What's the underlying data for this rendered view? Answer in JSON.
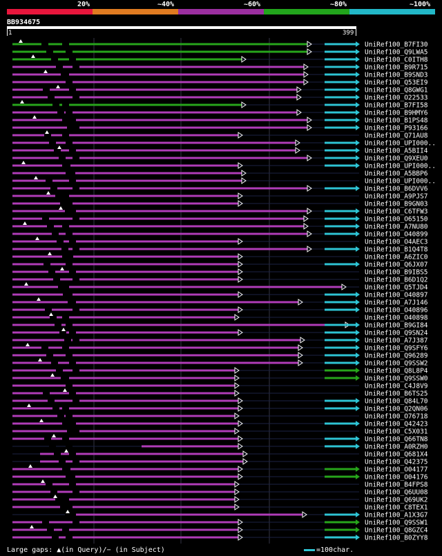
{
  "legend": {
    "labels": [
      "20%",
      "~40%",
      "~60%",
      "~80%",
      "~100%"
    ],
    "colors": [
      "#e8163c",
      "#e07b21",
      "#9b2fa0",
      "#22a51c",
      "#22b8c8"
    ]
  },
  "query": {
    "name": "BB934675",
    "start": "1",
    "end": "399"
  },
  "footer": {
    "gaps_text": "Large gaps: ▲(in Query)/− (in Subject)",
    "scale_text": "=100char."
  },
  "colors": {
    "purple": "#b03cb8",
    "green": "#27a51b",
    "cyan": "#2ec4d4",
    "dark": "#1b2244"
  },
  "hits": [
    {
      "name": "UniRef100_B7FI30",
      "color": "green"
    },
    {
      "name": "UniRef100_Q9LWA5",
      "color": "green"
    },
    {
      "name": "UniRef100_C0ITH8",
      "color": "green"
    },
    {
      "name": "UniRef100_B9R715",
      "color": "purple"
    },
    {
      "name": "UniRef100_B9SND3",
      "color": "purple"
    },
    {
      "name": "UniRef100_Q53EI9",
      "color": "purple"
    },
    {
      "name": "UniRef100_Q8GWG1",
      "color": "purple"
    },
    {
      "name": "UniRef100_O22533",
      "color": "purple"
    },
    {
      "name": "UniRef100_B7FI58",
      "color": "green"
    },
    {
      "name": "UniRef100_B9HMY6",
      "color": "purple"
    },
    {
      "name": "UniRef100_B1PS48",
      "color": "purple"
    },
    {
      "name": "UniRef100_P93166",
      "color": "purple"
    },
    {
      "name": "UniRef100_Q71AU8",
      "color": "purple"
    },
    {
      "name": "UniRef100_UPI000..",
      "color": "purple"
    },
    {
      "name": "UniRef100_A5BII4",
      "color": "purple"
    },
    {
      "name": "UniRef100_Q9XEU0",
      "color": "purple"
    },
    {
      "name": "UniRef100_UPI000..",
      "color": "purple"
    },
    {
      "name": "UniRef100_A5BBP6",
      "color": "purple"
    },
    {
      "name": "UniRef100_UPI000..",
      "color": "purple"
    },
    {
      "name": "UniRef100_B6DVV6",
      "color": "purple"
    },
    {
      "name": "UniRef100_A9PJS7",
      "color": "purple"
    },
    {
      "name": "UniRef100_B9GN03",
      "color": "purple"
    },
    {
      "name": "UniRef100_C6TFW3",
      "color": "purple"
    },
    {
      "name": "UniRef100_O65150",
      "color": "purple"
    },
    {
      "name": "UniRef100_A7NU80",
      "color": "purple"
    },
    {
      "name": "UniRef100_O40899",
      "color": "purple"
    },
    {
      "name": "UniRef100_O4AEC3",
      "color": "purple"
    },
    {
      "name": "UniRef100_B1Q4T8",
      "color": "purple"
    },
    {
      "name": "UniRef100_A6ZIC0",
      "color": "purple"
    },
    {
      "name": "UniRef100_Q6JX07",
      "color": "purple"
    },
    {
      "name": "UniRef100_B9IBS5",
      "color": "purple"
    },
    {
      "name": "UniRef100_B6D1Q2",
      "color": "purple"
    },
    {
      "name": "UniRef100_Q5TJD4",
      "color": "purple"
    },
    {
      "name": "UniRef100_O40897",
      "color": "purple"
    },
    {
      "name": "UniRef100_A7J146",
      "color": "purple"
    },
    {
      "name": "UniRef100_O40896",
      "color": "purple"
    },
    {
      "name": "UniRef100_O40898",
      "color": "purple"
    },
    {
      "name": "UniRef100_B9GI84",
      "color": "purple"
    },
    {
      "name": "UniRef100_Q9SN24",
      "color": "purple"
    },
    {
      "name": "UniRef100_A7J387",
      "color": "purple"
    },
    {
      "name": "UniRef100_Q9SFY6",
      "color": "purple"
    },
    {
      "name": "UniRef100_Q96289",
      "color": "purple"
    },
    {
      "name": "UniRef100_Q9SSW2",
      "color": "purple"
    },
    {
      "name": "UniRef100_Q8L8P4",
      "color": "purple"
    },
    {
      "name": "UniRef100_Q9SSW0",
      "color": "purple"
    },
    {
      "name": "UniRef100_C4J8V9",
      "color": "purple"
    },
    {
      "name": "UniRef100_B6TS25",
      "color": "purple"
    },
    {
      "name": "UniRef100_Q84L70",
      "color": "purple"
    },
    {
      "name": "UniRef100_Q2QN06",
      "color": "purple"
    },
    {
      "name": "UniRef100_O76718",
      "color": "purple"
    },
    {
      "name": "UniRef100_Q42423",
      "color": "purple"
    },
    {
      "name": "UniRef100_C5X031",
      "color": "purple"
    },
    {
      "name": "UniRef100_Q66TN8",
      "color": "purple"
    },
    {
      "name": "UniRef100_A0RZH0",
      "color": "purple"
    },
    {
      "name": "UniRef100_Q681X4",
      "color": "purple"
    },
    {
      "name": "UniRef100_Q42375",
      "color": "purple"
    },
    {
      "name": "UniRef100_O04177",
      "color": "purple"
    },
    {
      "name": "UniRef100_O04176",
      "color": "purple"
    },
    {
      "name": "UniRef100_B4FPS8",
      "color": "purple"
    },
    {
      "name": "UniRef100_Q6UU08",
      "color": "purple"
    },
    {
      "name": "UniRef100_Q69UK2",
      "color": "purple"
    },
    {
      "name": "UniRef100_C8TEX1",
      "color": "purple"
    },
    {
      "name": "UniRef100_A1X3G7",
      "color": "purple"
    },
    {
      "name": "UniRef100_Q9SSW1",
      "color": "purple"
    },
    {
      "name": "UniRef100_Q8GZC4",
      "color": "purple"
    },
    {
      "name": "UniRef100_B0ZYY8",
      "color": "purple"
    }
  ]
}
